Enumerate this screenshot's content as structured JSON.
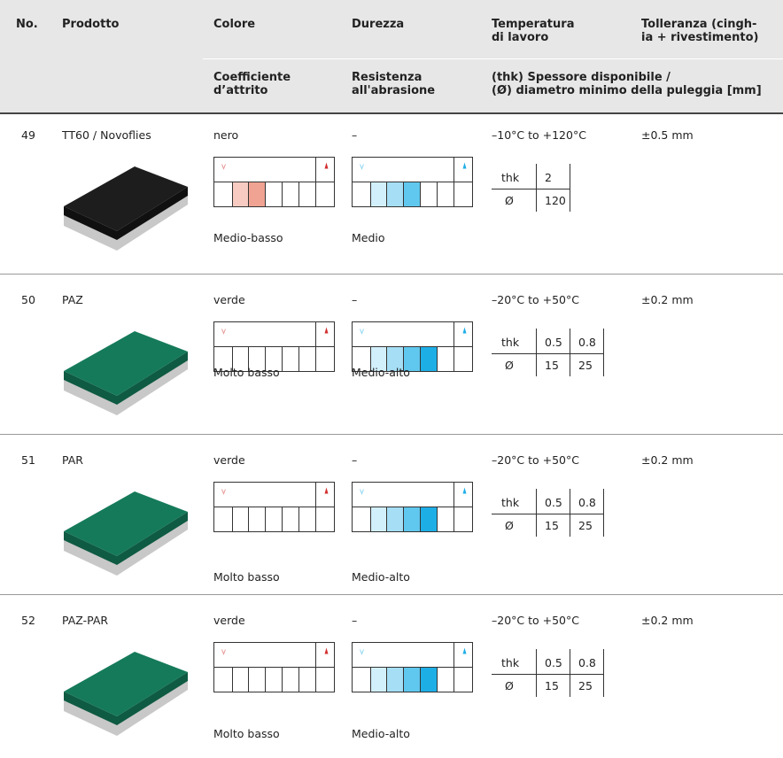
{
  "header": {
    "row1": [
      "No.",
      "Prodotto",
      "Colore",
      "Durezza",
      "Temperatura\ndi lavoro",
      "Tolleranza (cingh-\nia + rivestimento)"
    ],
    "row2": [
      "Coefficiente\nd’attrito",
      "Resistenza\nall'abrasione",
      "(thk) Spessore disponibile /\n(Ø) diametro minimo della puleggia [mm]"
    ]
  },
  "table": {
    "dims": [
      "thk",
      "Ø"
    ],
    "rows": [
      {
        "no": "49",
        "product": "TT60 / Novoflies",
        "color": "nero",
        "hardness": "–",
        "temperature": "–10°C to +120°C",
        "tolerance": "±0.5 mm",
        "friction": {
          "level": 2,
          "label": "Medio-basso"
        },
        "abrasion": {
          "level": 3,
          "label": "Medio"
        },
        "thk": [
          "2"
        ],
        "dia": [
          "120"
        ]
      },
      {
        "no": "50",
        "product": "PAZ",
        "color": "verde",
        "hardness": "–",
        "temperature": "–20°C to +50°C",
        "tolerance": "±0.2 mm",
        "friction": {
          "level": 0,
          "label": "Molto basso"
        },
        "abrasion": {
          "level": 4,
          "label": "Medio-alto"
        },
        "thk": [
          "0.5",
          "0.8"
        ],
        "dia": [
          "15",
          "25"
        ]
      },
      {
        "no": "51",
        "product": "PAR",
        "color": "verde",
        "hardness": "–",
        "temperature": "–20°C to +50°C",
        "tolerance": "±0.2 mm",
        "friction": {
          "level": 0,
          "label": "Molto basso"
        },
        "abrasion": {
          "level": 4,
          "label": "Medio-alto"
        },
        "thk": [
          "0.5",
          "0.8"
        ],
        "dia": [
          "15",
          "25"
        ]
      },
      {
        "no": "52",
        "product": "PAZ-PAR",
        "color": "verde",
        "hardness": "–",
        "temperature": "–20°C to +50°C",
        "tolerance": "±0.2 mm",
        "friction": {
          "level": 0,
          "label": "Molto basso"
        },
        "abrasion": {
          "level": 4,
          "label": "Medio-alto"
        },
        "thk": [
          "0.5",
          "0.8"
        ],
        "dia": [
          "15",
          "25"
        ]
      }
    ]
  }
}
